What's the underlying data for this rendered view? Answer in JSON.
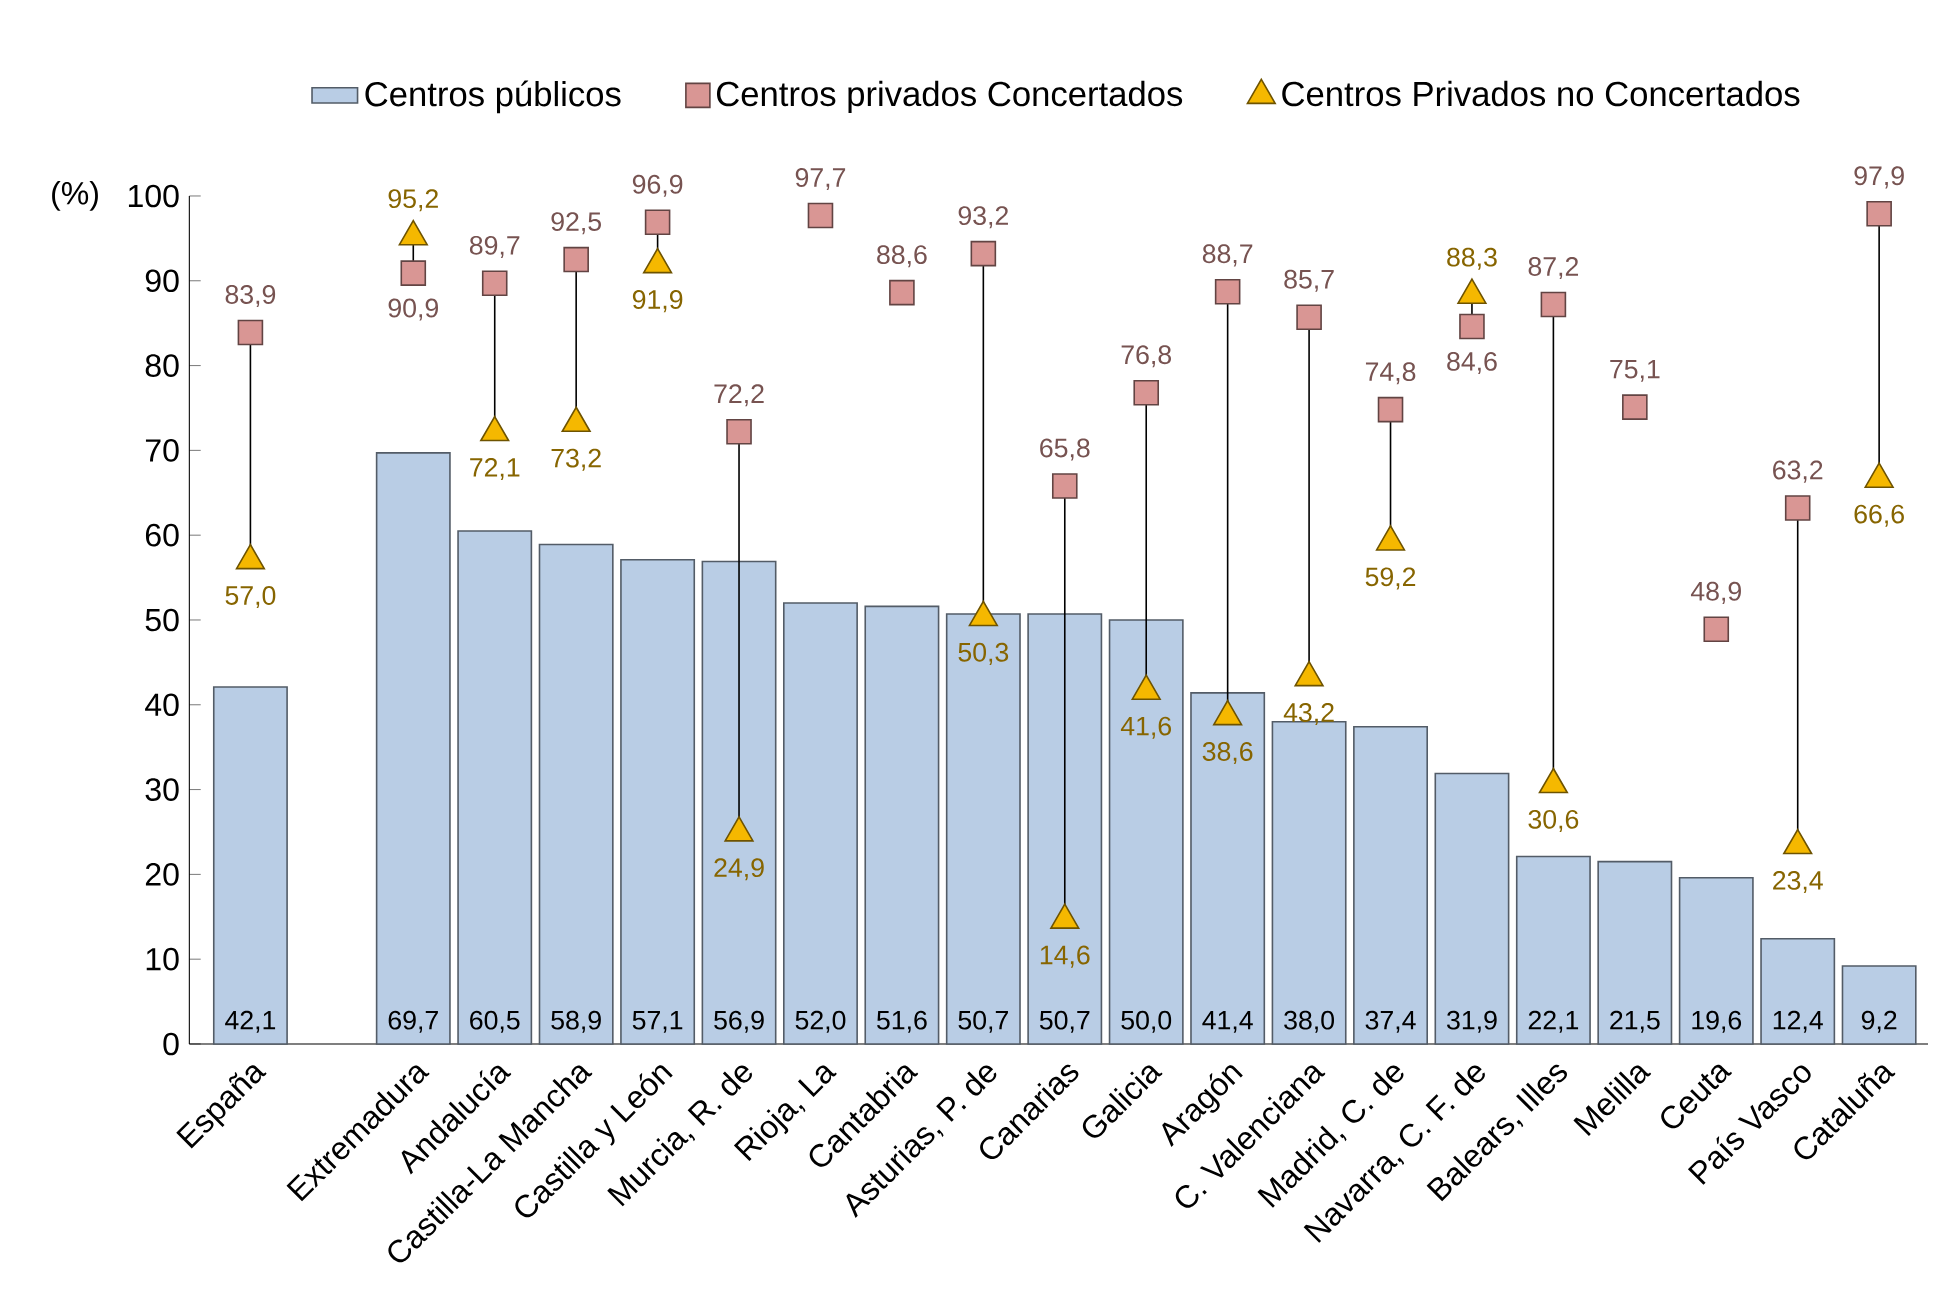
{
  "chart_data": {
    "type": "bar",
    "categories": [
      "España",
      null,
      "Extremadura",
      "Andalucía",
      "Castilla-La Mancha",
      "Castilla y León",
      "Murcia, R. de",
      "Rioja, La",
      "Cantabria",
      "Asturias, P. de",
      "Canarias",
      "Galicia",
      "Aragón",
      "C. Valenciana",
      "Madrid, C. de",
      "Navarra, C. F. de",
      "Balears, Illes",
      "Melilla",
      "Ceuta",
      "País Vasco",
      "Cataluña"
    ],
    "ylabel": "(%)",
    "ylim": [
      0,
      100
    ],
    "yticks": [
      0,
      10,
      20,
      30,
      40,
      50,
      60,
      70,
      80,
      90,
      100
    ],
    "legend": "top",
    "grid": false,
    "series": [
      {
        "name": "Centros públicos",
        "color": "#b9cde5",
        "values": [
          42.1,
          null,
          69.7,
          60.5,
          58.9,
          57.1,
          56.9,
          52.0,
          51.6,
          50.7,
          50.7,
          50.0,
          41.4,
          38.0,
          37.4,
          31.9,
          22.1,
          21.5,
          19.6,
          12.4,
          9.2
        ],
        "value_labels": [
          "42,1",
          null,
          "69,7",
          "60,5",
          "58,9",
          "57,1",
          "56,9",
          "52,0",
          "51,6",
          "50,7",
          "50,7",
          "50,0",
          "41,4",
          "38,0",
          "37,4",
          "31,9",
          "22,1",
          "21,5",
          "19,6",
          "12,4",
          "9,2"
        ]
      },
      {
        "name": "Centros privados Concertados",
        "type": "scatter",
        "marker": "square",
        "color": "#d99694",
        "values": [
          83.9,
          null,
          90.9,
          89.7,
          92.5,
          96.9,
          72.2,
          97.7,
          88.6,
          93.2,
          65.8,
          76.8,
          88.7,
          85.7,
          74.8,
          84.6,
          87.2,
          75.1,
          48.9,
          63.2,
          97.9
        ],
        "value_labels": [
          "83,9",
          null,
          "90,9",
          "89,7",
          "92,5",
          "96,9",
          "72,2",
          "97,7",
          "88,6",
          "93,2",
          "65,8",
          "76,8",
          "88,7",
          "85,7",
          "74,8",
          "84,6",
          "87,2",
          "75,1",
          "48,9",
          "63,2",
          "97,9"
        ]
      },
      {
        "name": "Centros Privados no Concertados",
        "type": "scatter",
        "marker": "triangle",
        "color": "#f5b800",
        "values": [
          57.0,
          null,
          95.2,
          72.1,
          73.2,
          91.9,
          24.9,
          null,
          null,
          50.3,
          14.6,
          41.6,
          38.6,
          43.2,
          59.2,
          88.3,
          30.6,
          null,
          null,
          23.4,
          66.6
        ],
        "value_labels": [
          "57,0",
          null,
          "95,2",
          "72,1",
          "73,2",
          "91,9",
          "24,9",
          null,
          null,
          "50,3",
          "14,6",
          "41,6",
          "38,6",
          "43,2",
          "59,2",
          "88,3",
          "30,6",
          null,
          null,
          "23,4",
          "66,6"
        ]
      }
    ]
  }
}
